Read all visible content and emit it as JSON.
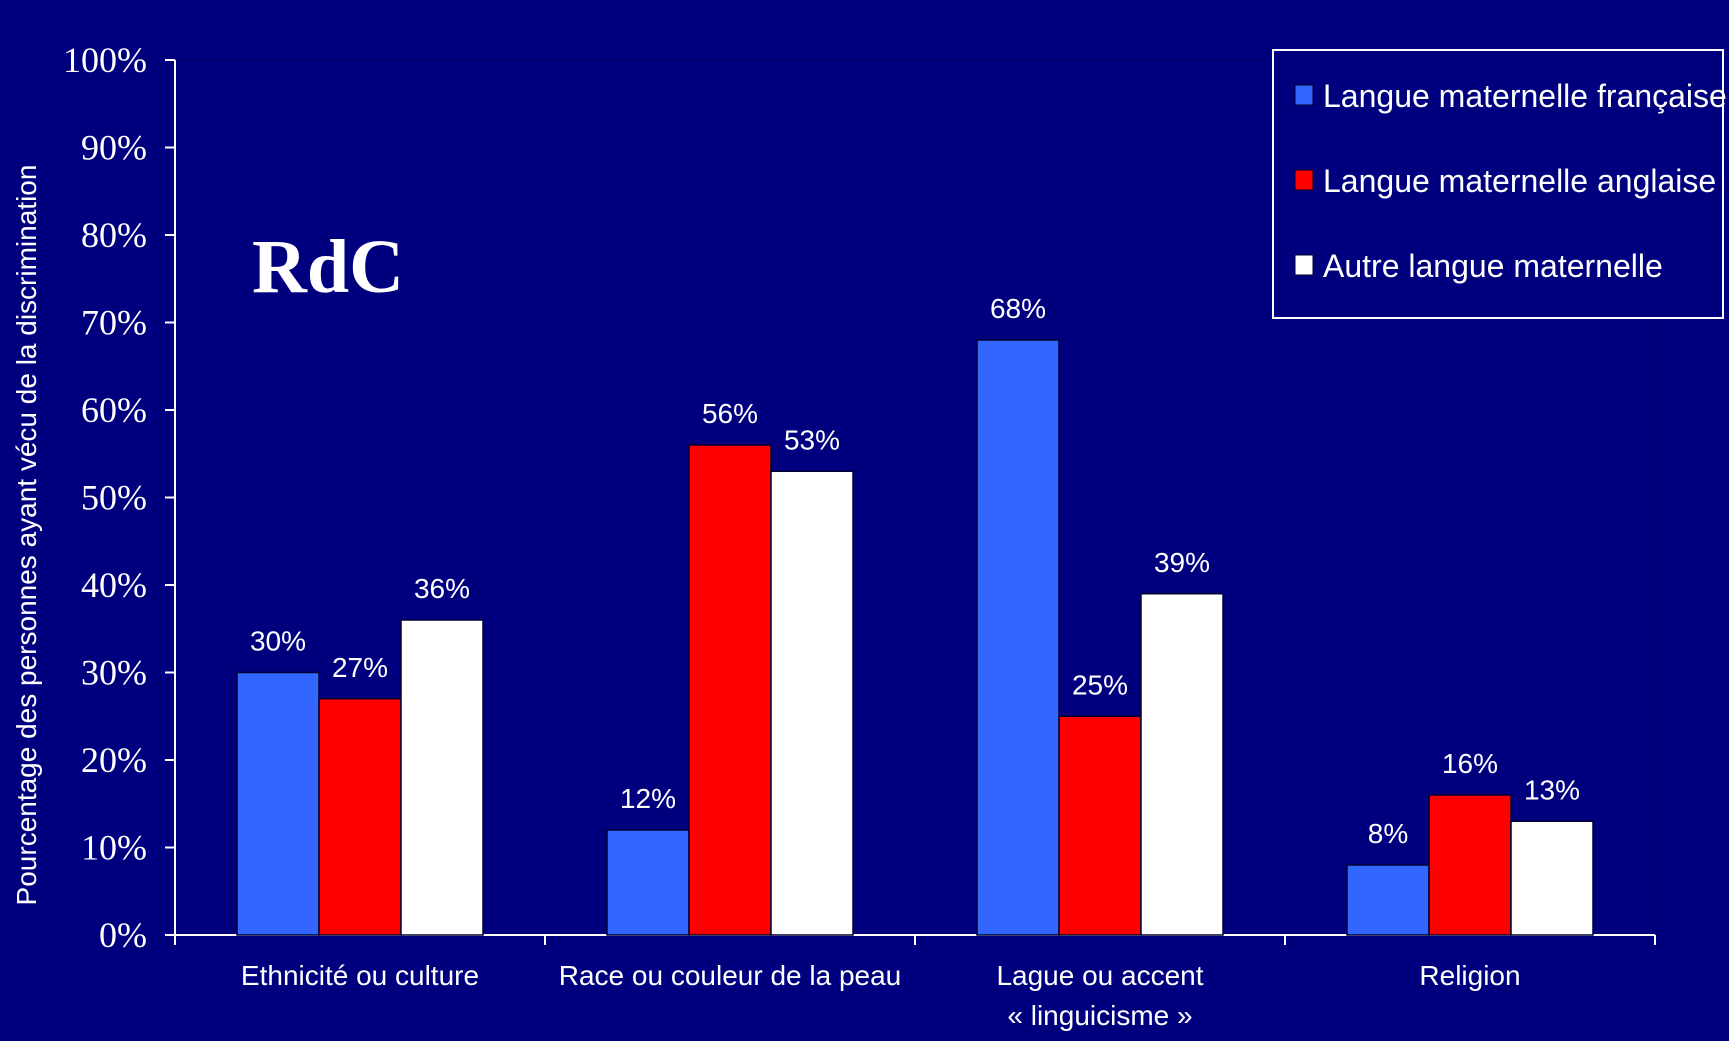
{
  "chart_data": {
    "type": "bar",
    "title": "",
    "overlay_label": "RdC",
    "ylabel": "Pourcentage des personnes ayant vécu de la discrimination",
    "xlabel": "",
    "ylim": [
      0,
      100
    ],
    "yticks": [
      0,
      10,
      20,
      30,
      40,
      50,
      60,
      70,
      80,
      90,
      100
    ],
    "ytick_labels": [
      "0%",
      "10%",
      "20%",
      "30%",
      "40%",
      "50%",
      "60%",
      "70%",
      "80%",
      "90%",
      "100%"
    ],
    "grid": false,
    "legend_position": "top-right",
    "categories": [
      [
        "Ethnicité ou culture"
      ],
      [
        "Race ou couleur de la peau"
      ],
      [
        "Lague ou accent",
        "« linguicisme »"
      ],
      [
        "Religion"
      ]
    ],
    "series": [
      {
        "name": "Langue maternelle française",
        "color": "#3366ff",
        "values": [
          30,
          12,
          68,
          8
        ],
        "labels": [
          "30%",
          "12%",
          "68%",
          "8%"
        ]
      },
      {
        "name": "Langue maternelle anglaise",
        "color": "#ff0000",
        "values": [
          27,
          56,
          25,
          16
        ],
        "labels": [
          "27%",
          "56%",
          "25%",
          "16%"
        ]
      },
      {
        "name": "Autre langue maternelle",
        "color": "#ffffff",
        "values": [
          36,
          53,
          39,
          13
        ],
        "labels": [
          "36%",
          "53%",
          "39%",
          "13%"
        ]
      }
    ]
  }
}
